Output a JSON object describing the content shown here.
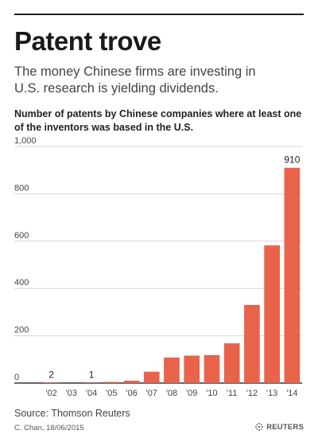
{
  "title": "Patent trove",
  "subtitle": "The money Chinese firms are investing in U.S. research is yielding dividends.",
  "source": "Source: Thomson Reuters",
  "credit": "C. Chan, 18/06/2015",
  "logo_text": "REUTERS",
  "colors": {
    "bar": "#e8634a",
    "axis": "#333333",
    "grid": "#d6d6d6",
    "text": "#222222"
  },
  "chart_data": {
    "type": "bar",
    "title": "Number of patents by Chinese companies where at least one of the inventors was based in the U.S.",
    "categories": [
      "'02",
      "'03",
      "'04",
      "'05",
      "'06",
      "'07",
      "'08",
      "'09",
      "'10",
      "'11",
      "'12",
      "'13",
      "'14"
    ],
    "values": [
      2,
      0,
      1,
      5,
      10,
      48,
      108,
      116,
      118,
      168,
      330,
      582,
      910
    ],
    "data_labels": {
      "'02": "2",
      "'04": "1",
      "'14": "910"
    },
    "y_ticks": [
      0,
      200,
      400,
      600,
      800,
      1000
    ],
    "y_tick_labels": [
      "0",
      "200",
      "400",
      "600",
      "800",
      "1,000"
    ],
    "ylim": [
      0,
      1000
    ],
    "xlabel": "",
    "ylabel": "",
    "grid": true
  }
}
